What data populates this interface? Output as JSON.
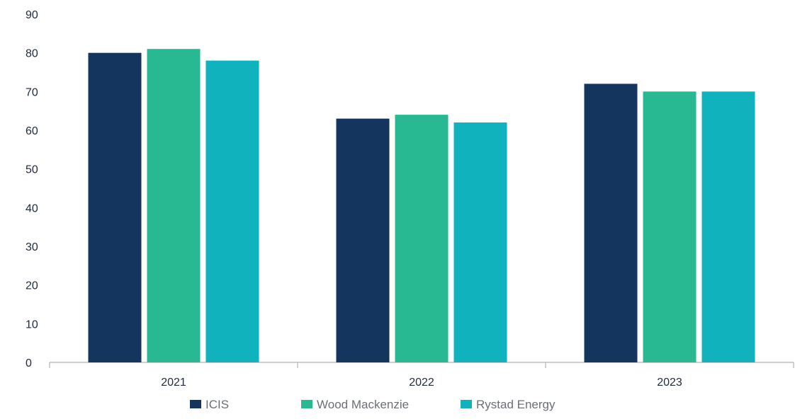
{
  "chart_data": {
    "type": "bar",
    "categories": [
      "2021",
      "2022",
      "2023"
    ],
    "series": [
      {
        "name": "ICIS",
        "color": "#14365e",
        "values": [
          80,
          63,
          72
        ]
      },
      {
        "name": "Wood Mackenzie",
        "color": "#28b993",
        "values": [
          81,
          64,
          70
        ]
      },
      {
        "name": "Rystad Energy",
        "color": "#10b2bd",
        "values": [
          78,
          62,
          70
        ]
      }
    ],
    "title": "",
    "xlabel": "",
    "ylabel": "",
    "ylim": [
      0,
      90
    ],
    "yticks": [
      0,
      10,
      20,
      30,
      40,
      50,
      60,
      70,
      80,
      90
    ],
    "grid": false,
    "legend": "bottom"
  }
}
